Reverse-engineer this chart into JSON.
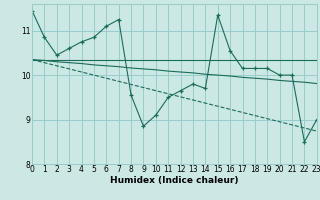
{
  "xlabel": "Humidex (Indice chaleur)",
  "bg_color": "#cce8e4",
  "grid_color": "#99cccc",
  "line_color": "#1a6b5a",
  "xlim": [
    0,
    23
  ],
  "ylim": [
    8.0,
    11.6
  ],
  "yticks": [
    8,
    9,
    10,
    11
  ],
  "xticks": [
    0,
    1,
    2,
    3,
    4,
    5,
    6,
    7,
    8,
    9,
    10,
    11,
    12,
    13,
    14,
    15,
    16,
    17,
    18,
    19,
    20,
    21,
    22,
    23
  ],
  "series": [
    {
      "y": [
        11.45,
        10.85,
        10.45,
        10.6,
        10.75,
        10.85,
        11.1,
        11.25,
        9.55,
        8.85,
        9.1,
        9.5,
        9.65,
        9.8,
        9.7,
        11.35,
        10.55,
        10.15,
        10.15,
        10.15,
        10.0,
        10.0,
        8.5,
        9.0
      ],
      "marker": true,
      "dashed": false
    },
    {
      "y": [
        10.35,
        10.35,
        10.35,
        10.35,
        10.35,
        10.35,
        10.35,
        10.35,
        10.35,
        10.35,
        10.35,
        10.35,
        10.35,
        10.35,
        10.35,
        10.35,
        10.35,
        10.35,
        10.35,
        10.35,
        10.35,
        10.35,
        10.35,
        10.35
      ],
      "marker": false,
      "dashed": false
    },
    {
      "y": [
        10.35,
        10.28,
        10.21,
        10.14,
        10.07,
        10.0,
        9.93,
        9.86,
        9.79,
        9.72,
        9.65,
        9.58,
        9.51,
        9.44,
        9.37,
        9.3,
        9.23,
        9.16,
        9.09,
        9.02,
        8.95,
        8.88,
        8.81,
        8.74
      ],
      "marker": false,
      "dashed": true
    },
    {
      "y": [
        10.35,
        10.33,
        10.3,
        10.28,
        10.26,
        10.23,
        10.21,
        10.19,
        10.16,
        10.14,
        10.12,
        10.09,
        10.07,
        10.05,
        10.02,
        10.0,
        9.98,
        9.95,
        9.93,
        9.91,
        9.88,
        9.86,
        9.84,
        9.81
      ],
      "marker": false,
      "dashed": false
    }
  ]
}
